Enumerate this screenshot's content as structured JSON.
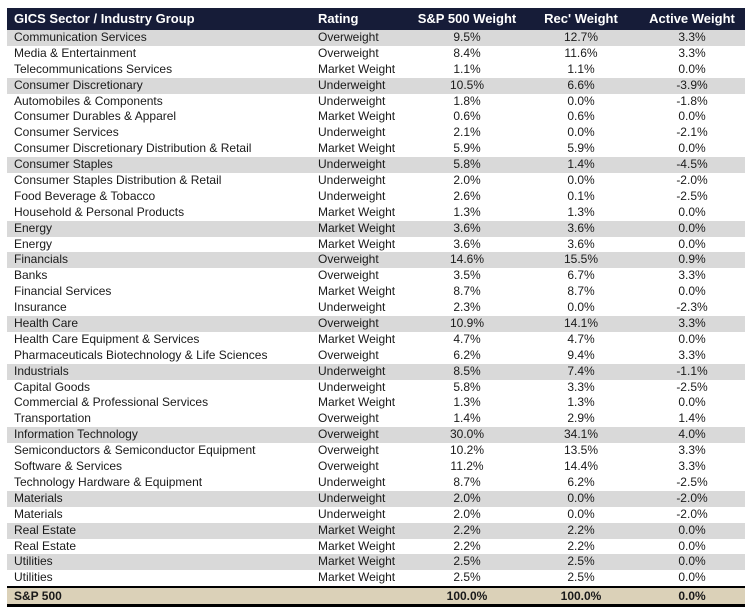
{
  "colors": {
    "header_bg": "#161c38",
    "header_text": "#ffffff",
    "sector_row_bg": "#d9d9d9",
    "row_bg": "#ffffff",
    "footer_bg": "#dbd1b8",
    "border": "#000000",
    "body_text": "#1a1a1a"
  },
  "chart_data": {
    "type": "table",
    "columns": [
      "GICS Sector / Industry Group",
      "Rating",
      "S&P 500 Weight",
      "Rec' Weight",
      "Active Weight"
    ],
    "rows": [
      {
        "name": "Communication Services",
        "rating": "Overweight",
        "sp500_weight": "9.5%",
        "rec_weight": "12.7%",
        "active_weight": "3.3%",
        "is_sector": true
      },
      {
        "name": "Media & Entertainment",
        "rating": "Overweight",
        "sp500_weight": "8.4%",
        "rec_weight": "11.6%",
        "active_weight": "3.3%",
        "is_sector": false
      },
      {
        "name": "Telecommunications Services",
        "rating": "Market Weight",
        "sp500_weight": "1.1%",
        "rec_weight": "1.1%",
        "active_weight": "0.0%",
        "is_sector": false
      },
      {
        "name": "Consumer Discretionary",
        "rating": "Underweight",
        "sp500_weight": "10.5%",
        "rec_weight": "6.6%",
        "active_weight": "-3.9%",
        "is_sector": true
      },
      {
        "name": "Automobiles & Components",
        "rating": "Underweight",
        "sp500_weight": "1.8%",
        "rec_weight": "0.0%",
        "active_weight": "-1.8%",
        "is_sector": false
      },
      {
        "name": "Consumer Durables & Apparel",
        "rating": "Market Weight",
        "sp500_weight": "0.6%",
        "rec_weight": "0.6%",
        "active_weight": "0.0%",
        "is_sector": false
      },
      {
        "name": "Consumer Services",
        "rating": "Underweight",
        "sp500_weight": "2.1%",
        "rec_weight": "0.0%",
        "active_weight": "-2.1%",
        "is_sector": false
      },
      {
        "name": "Consumer Discretionary Distribution & Retail",
        "rating": "Market Weight",
        "sp500_weight": "5.9%",
        "rec_weight": "5.9%",
        "active_weight": "0.0%",
        "is_sector": false
      },
      {
        "name": "Consumer Staples",
        "rating": "Underweight",
        "sp500_weight": "5.8%",
        "rec_weight": "1.4%",
        "active_weight": "-4.5%",
        "is_sector": true
      },
      {
        "name": "Consumer Staples Distribution & Retail",
        "rating": "Underweight",
        "sp500_weight": "2.0%",
        "rec_weight": "0.0%",
        "active_weight": "-2.0%",
        "is_sector": false
      },
      {
        "name": "Food Beverage & Tobacco",
        "rating": "Underweight",
        "sp500_weight": "2.6%",
        "rec_weight": "0.1%",
        "active_weight": "-2.5%",
        "is_sector": false
      },
      {
        "name": "Household & Personal Products",
        "rating": "Market Weight",
        "sp500_weight": "1.3%",
        "rec_weight": "1.3%",
        "active_weight": "0.0%",
        "is_sector": false
      },
      {
        "name": "Energy",
        "rating": "Market Weight",
        "sp500_weight": "3.6%",
        "rec_weight": "3.6%",
        "active_weight": "0.0%",
        "is_sector": true
      },
      {
        "name": "Energy",
        "rating": "Market Weight",
        "sp500_weight": "3.6%",
        "rec_weight": "3.6%",
        "active_weight": "0.0%",
        "is_sector": false
      },
      {
        "name": "Financials",
        "rating": "Overweight",
        "sp500_weight": "14.6%",
        "rec_weight": "15.5%",
        "active_weight": "0.9%",
        "is_sector": true
      },
      {
        "name": "Banks",
        "rating": "Overweight",
        "sp500_weight": "3.5%",
        "rec_weight": "6.7%",
        "active_weight": "3.3%",
        "is_sector": false
      },
      {
        "name": "Financial Services",
        "rating": "Market Weight",
        "sp500_weight": "8.7%",
        "rec_weight": "8.7%",
        "active_weight": "0.0%",
        "is_sector": false
      },
      {
        "name": "Insurance",
        "rating": "Underweight",
        "sp500_weight": "2.3%",
        "rec_weight": "0.0%",
        "active_weight": "-2.3%",
        "is_sector": false
      },
      {
        "name": "Health Care",
        "rating": "Overweight",
        "sp500_weight": "10.9%",
        "rec_weight": "14.1%",
        "active_weight": "3.3%",
        "is_sector": true
      },
      {
        "name": "Health Care Equipment & Services",
        "rating": "Market Weight",
        "sp500_weight": "4.7%",
        "rec_weight": "4.7%",
        "active_weight": "0.0%",
        "is_sector": false
      },
      {
        "name": "Pharmaceuticals Biotechnology & Life Sciences",
        "rating": "Overweight",
        "sp500_weight": "6.2%",
        "rec_weight": "9.4%",
        "active_weight": "3.3%",
        "is_sector": false
      },
      {
        "name": "Industrials",
        "rating": "Underweight",
        "sp500_weight": "8.5%",
        "rec_weight": "7.4%",
        "active_weight": "-1.1%",
        "is_sector": true
      },
      {
        "name": "Capital Goods",
        "rating": "Underweight",
        "sp500_weight": "5.8%",
        "rec_weight": "3.3%",
        "active_weight": "-2.5%",
        "is_sector": false
      },
      {
        "name": "Commercial & Professional Services",
        "rating": "Market Weight",
        "sp500_weight": "1.3%",
        "rec_weight": "1.3%",
        "active_weight": "0.0%",
        "is_sector": false
      },
      {
        "name": "Transportation",
        "rating": "Overweight",
        "sp500_weight": "1.4%",
        "rec_weight": "2.9%",
        "active_weight": "1.4%",
        "is_sector": false
      },
      {
        "name": "Information Technology",
        "rating": "Overweight",
        "sp500_weight": "30.0%",
        "rec_weight": "34.1%",
        "active_weight": "4.0%",
        "is_sector": true
      },
      {
        "name": "Semiconductors & Semiconductor Equipment",
        "rating": "Overweight",
        "sp500_weight": "10.2%",
        "rec_weight": "13.5%",
        "active_weight": "3.3%",
        "is_sector": false
      },
      {
        "name": "Software & Services",
        "rating": "Overweight",
        "sp500_weight": "11.2%",
        "rec_weight": "14.4%",
        "active_weight": "3.3%",
        "is_sector": false
      },
      {
        "name": "Technology Hardware & Equipment",
        "rating": "Underweight",
        "sp500_weight": "8.7%",
        "rec_weight": "6.2%",
        "active_weight": "-2.5%",
        "is_sector": false
      },
      {
        "name": "Materials",
        "rating": "Underweight",
        "sp500_weight": "2.0%",
        "rec_weight": "0.0%",
        "active_weight": "-2.0%",
        "is_sector": true
      },
      {
        "name": "Materials",
        "rating": "Underweight",
        "sp500_weight": "2.0%",
        "rec_weight": "0.0%",
        "active_weight": "-2.0%",
        "is_sector": false
      },
      {
        "name": "Real Estate",
        "rating": "Market Weight",
        "sp500_weight": "2.2%",
        "rec_weight": "2.2%",
        "active_weight": "0.0%",
        "is_sector": true
      },
      {
        "name": "Real Estate",
        "rating": "Market Weight",
        "sp500_weight": "2.2%",
        "rec_weight": "2.2%",
        "active_weight": "0.0%",
        "is_sector": false
      },
      {
        "name": "Utilities",
        "rating": "Market Weight",
        "sp500_weight": "2.5%",
        "rec_weight": "2.5%",
        "active_weight": "0.0%",
        "is_sector": true
      },
      {
        "name": "Utilities",
        "rating": "Market Weight",
        "sp500_weight": "2.5%",
        "rec_weight": "2.5%",
        "active_weight": "0.0%",
        "is_sector": false
      }
    ],
    "footer": {
      "name": "S&P 500",
      "rating": "",
      "sp500_weight": "100.0%",
      "rec_weight": "100.0%",
      "active_weight": "0.0%"
    }
  }
}
